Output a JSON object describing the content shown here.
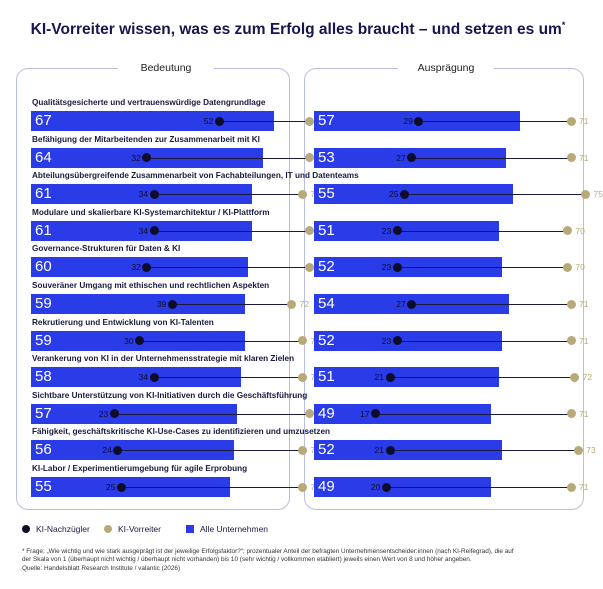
{
  "title": "KI-Vorreiter wissen, was es zum Erfolg alles braucht – und setzen es um",
  "title_mark": "*",
  "chart_data": {
    "type": "bar",
    "panels": [
      {
        "name": "Bedeutung"
      },
      {
        "name": "Ausprägung"
      }
    ],
    "categories": [
      "Qualitätsgesicherte und vertrauenswürdige Datengrundlage",
      "Befähigung der Mitarbeitenden zur Zusammenarbeit mit KI",
      "Abteilungsübergreifende Zusammenarbeit von Fachabteilungen, IT und Datenteams",
      "Modulare und skalierbare KI-Systemarchitektur / KI-Plattform",
      "Governance-Strukturen für Daten & KI",
      "Souveräner Umgang mit ethischen und rechtlichen Aspekten",
      "Rekrutierung und Entwicklung von KI-Talenten",
      "Verankerung von KI in der Unternehmensstrategie mit klaren Zielen",
      "Sichtbare Unterstützung von KI-Initiativen durch die Geschäftsführung",
      "Fähigkeit, geschäftskritische KI-Use-Cases zu identifizieren und umzusetzen",
      "KI-Labor / Experimentierumgebung für agile Erprobung"
    ],
    "series": [
      {
        "name": "Alle Unternehmen",
        "color": "#2a3be8",
        "bedeutung": [
          67,
          64,
          61,
          61,
          60,
          59,
          59,
          58,
          57,
          56,
          55
        ],
        "auspraegung": [
          57,
          53,
          55,
          51,
          52,
          54,
          52,
          51,
          49,
          52,
          49
        ]
      },
      {
        "name": "KI-Nachzügler",
        "color": "#0d0d2b",
        "bedeutung": [
          52,
          32,
          34,
          34,
          32,
          39,
          30,
          34,
          23,
          24,
          25
        ],
        "auspraegung": [
          29,
          27,
          25,
          23,
          23,
          27,
          23,
          21,
          17,
          21,
          20
        ]
      },
      {
        "name": "KI-Vorreiter",
        "color": "#b8a978",
        "bedeutung": [
          77,
          77,
          75,
          77,
          77,
          72,
          75,
          75,
          77,
          75,
          75
        ],
        "auspraegung": [
          71,
          71,
          75,
          70,
          70,
          71,
          71,
          72,
          71,
          73,
          71
        ]
      }
    ],
    "xlim": [
      0,
      100
    ],
    "legend_position": "bottom-left"
  },
  "footnote": [
    "* Frage: „Wie wichtig und wie stark ausgeprägt ist der jeweilige Erfolgsfaktor?“; prozentualer Anteil der befragten Unternehmensentscheider:innen (nach KI-Reifegrad), die auf",
    "der Skala von 1 (überhaupt nicht wichtig / überhaupt nicht vorhanden) bis 10 (sehr wichtig / vollkommen etabliert) jeweils einen Wert von 8 und höher angeben.",
    "Quelle: Handelsblatt Research Institute / valantic (2026)"
  ]
}
